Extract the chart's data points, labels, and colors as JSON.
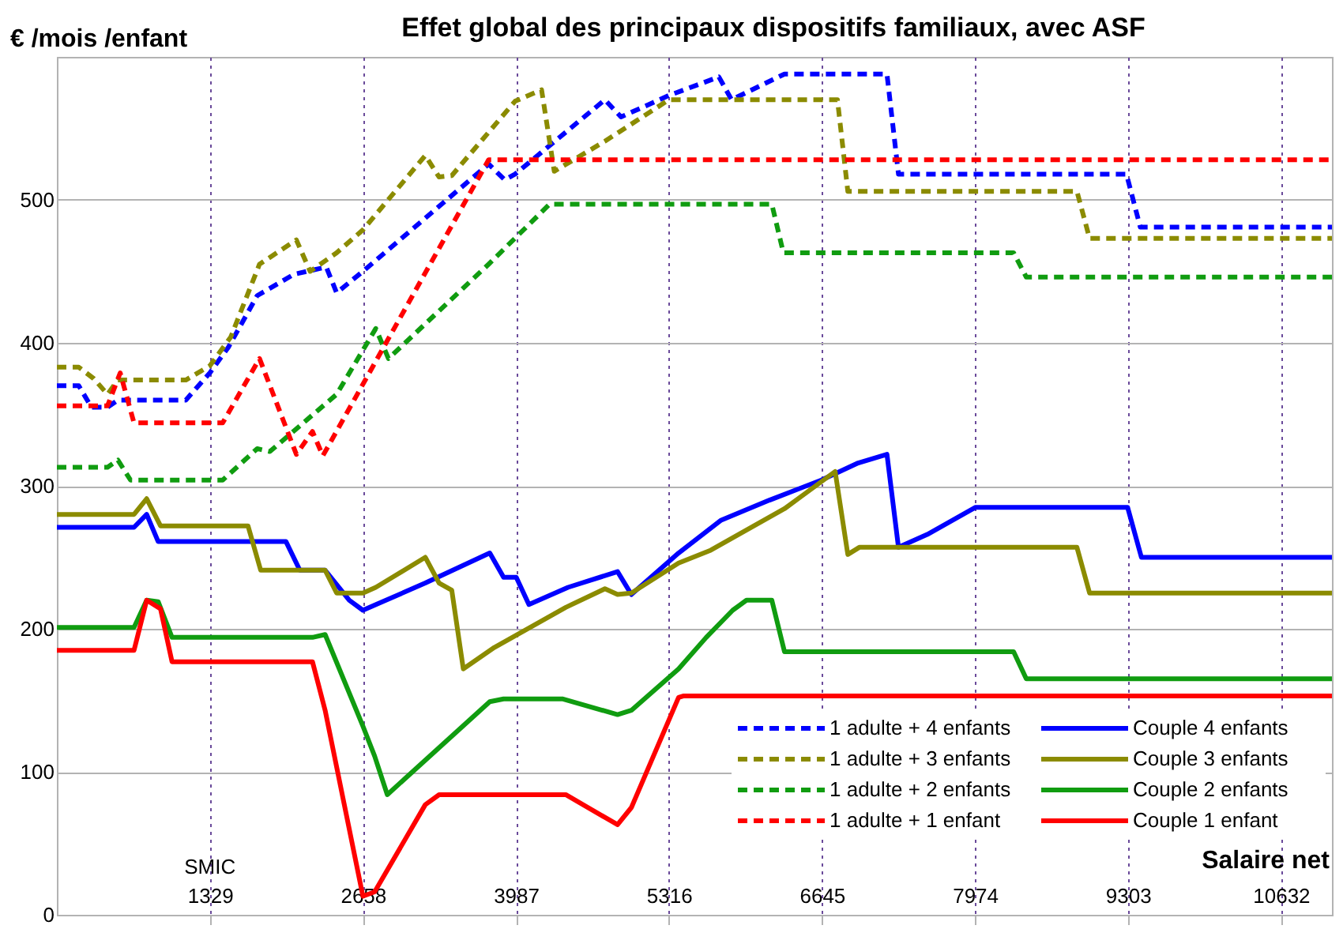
{
  "chart_data": {
    "type": "line",
    "title": "Effet global des principaux dispositifs familiaux, avec ASF",
    "xlabel": "Salaire net",
    "ylabel": "€ /mois /enfant",
    "xlim": [
      0,
      11075
    ],
    "xticks": [
      1329,
      2658,
      3987,
      5316,
      6645,
      7974,
      9303,
      10632
    ],
    "ylim": [
      0,
      600
    ],
    "yticks": [
      0,
      100,
      200,
      300,
      400,
      500
    ],
    "grid": true,
    "legend": "bottom right",
    "annotations": [
      "SMIC"
    ],
    "series": [
      {
        "name": "1 adulte + 4 enfants",
        "color": "#0000ff",
        "line_style": "dashed",
        "x": [
          0,
          190,
          300,
          440,
          530,
          1120,
          1329,
          1490,
          1740,
          2060,
          2340,
          2430,
          2658,
          3750,
          3890,
          3980,
          4760,
          4900,
          5316,
          5750,
          5860,
          6320,
          7210,
          7310,
          9290,
          9410,
          11075
        ],
        "values": [
          370,
          370,
          355,
          355,
          360,
          360,
          379,
          397,
          433,
          448,
          453,
          435,
          450,
          525,
          514,
          518,
          570,
          558,
          573,
          586,
          570,
          588,
          588,
          518,
          518,
          481,
          481
        ]
      },
      {
        "name": "Couple 4 enfants",
        "color": "#0000ff",
        "line_style": "solid",
        "x": [
          0,
          670,
          780,
          880,
          1990,
          2110,
          2330,
          2540,
          2658,
          3200,
          3760,
          3880,
          3990,
          4100,
          4440,
          4870,
          4990,
          5400,
          5770,
          6190,
          6640,
          6960,
          7210,
          7310,
          7560,
          7980,
          9300,
          9420,
          11075
        ],
        "values": [
          271,
          271,
          280,
          261,
          261,
          241,
          241,
          220,
          213,
          232,
          253,
          236,
          236,
          217,
          229,
          240,
          224,
          253,
          276,
          290,
          304,
          316,
          322,
          257,
          266,
          285,
          285,
          250,
          250
        ]
      },
      {
        "name": "1 adulte + 3 enfants",
        "color": "#8b8b00",
        "line_style": "dashed",
        "x": [
          0,
          190,
          320,
          440,
          530,
          1120,
          1329,
          1510,
          1760,
          2080,
          2200,
          2430,
          2658,
          3200,
          3320,
          3430,
          3980,
          4210,
          4320,
          4760,
          5316,
          6780,
          6870,
          8860,
          8970,
          11075
        ],
        "values": [
          383,
          383,
          375,
          364,
          374,
          374,
          384,
          404,
          455,
          472,
          450,
          463,
          479,
          531,
          516,
          517,
          569,
          577,
          520,
          541,
          570,
          570,
          506,
          506,
          473,
          473
        ]
      },
      {
        "name": "Couple 3 enfants",
        "color": "#8b8b00",
        "line_style": "solid",
        "x": [
          0,
          670,
          780,
          900,
          1660,
          1770,
          2330,
          2430,
          2658,
          2770,
          3200,
          3320,
          3430,
          3530,
          3800,
          4420,
          4760,
          4870,
          4990,
          5400,
          5680,
          6320,
          6760,
          6870,
          6970,
          8860,
          8970,
          11075
        ],
        "values": [
          280,
          280,
          291,
          272,
          272,
          241,
          241,
          225,
          225,
          229,
          250,
          232,
          227,
          172,
          187,
          215,
          228,
          224,
          225,
          246,
          255,
          284,
          310,
          252,
          257,
          257,
          225,
          225
        ]
      },
      {
        "name": "1 adulte + 2 enfants",
        "color": "#109c10",
        "line_style": "dashed",
        "x": [
          0,
          440,
          530,
          640,
          1440,
          1740,
          1850,
          2430,
          2770,
          2880,
          3750,
          4280,
          6210,
          6310,
          8310,
          8420,
          11075
        ],
        "values": [
          313,
          313,
          318,
          304,
          304,
          326,
          324,
          364,
          410,
          389,
          455,
          497,
          497,
          463,
          463,
          446,
          446
        ]
      },
      {
        "name": "Couple 2 enfants",
        "color": "#109c10",
        "line_style": "solid",
        "x": [
          0,
          670,
          780,
          880,
          1000,
          2220,
          2330,
          2658,
          2760,
          2870,
          3760,
          3880,
          4390,
          4870,
          4990,
          5400,
          5640,
          5870,
          5990,
          6210,
          6320,
          8310,
          8420,
          11075
        ],
        "values": [
          201,
          201,
          220,
          219,
          194,
          194,
          196,
          132,
          111,
          84,
          149,
          151,
          151,
          140,
          143,
          172,
          194,
          213,
          220,
          220,
          184,
          184,
          165,
          165
        ]
      },
      {
        "name": "1 adulte + 1 enfant",
        "color": "#ff0000",
        "line_style": "dashed",
        "x": [
          0,
          440,
          550,
          670,
          1440,
          1760,
          2080,
          2220,
          2310,
          3750,
          11075
        ],
        "values": [
          356,
          356,
          379,
          344,
          344,
          389,
          322,
          338,
          321,
          528,
          528
        ]
      },
      {
        "name": "Couple 1 enfant",
        "color": "#ff0000",
        "line_style": "solid",
        "x": [
          0,
          670,
          780,
          900,
          1000,
          2220,
          2330,
          2658,
          2760,
          3200,
          3320,
          4420,
          4870,
          4990,
          5400,
          5440,
          11075
        ],
        "values": [
          185,
          185,
          220,
          214,
          177,
          177,
          143,
          13,
          16,
          77,
          84,
          84,
          63,
          75,
          152,
          153,
          153
        ]
      }
    ]
  }
}
